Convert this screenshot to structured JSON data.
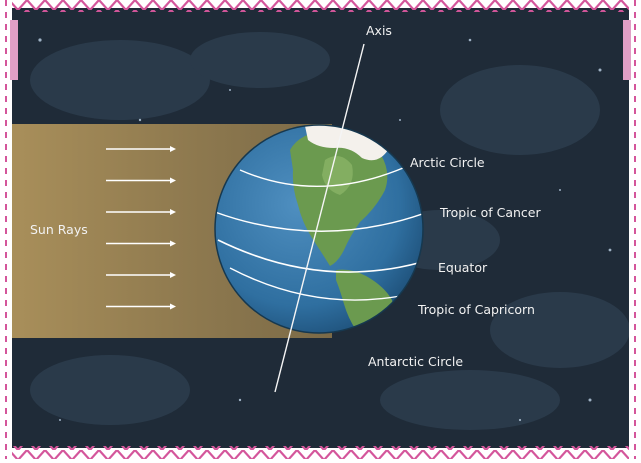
{
  "diagram": {
    "labels": {
      "axis": "Axis",
      "arctic_circle": "Arctic Circle",
      "tropic_of_cancer": "Tropic of Cancer",
      "equator": "Equator",
      "tropic_of_capricorn": "Tropic of Capricorn",
      "antarctic_circle": "Antarctic Circle",
      "sun_rays": "Sun Rays"
    },
    "sun_ray_count": 6,
    "colors": {
      "space": "#1f2b38",
      "sun_band": "#b89a5e",
      "ocean": "#2f6fa0",
      "land": "#6b9a4f",
      "ice": "#f4f1ec",
      "frame_pink": "#d4569b",
      "frame_pink_light": "#e19fc6"
    }
  }
}
